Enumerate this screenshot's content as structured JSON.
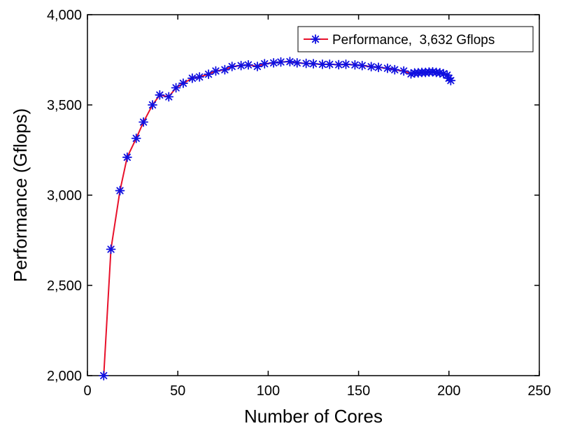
{
  "chart_data": {
    "type": "line",
    "xlabel": "Number of Cores",
    "ylabel": "Performance (Gflops)",
    "xlim": [
      0,
      250
    ],
    "ylim": [
      2000,
      4000
    ],
    "xticks": [
      0,
      50,
      100,
      150,
      200,
      250
    ],
    "xtick_labels": [
      "0",
      "50",
      "100",
      "150",
      "200",
      "250"
    ],
    "yticks": [
      2000,
      2500,
      3000,
      3500,
      4000
    ],
    "ytick_labels": [
      "2,000",
      "2,500",
      "3,000",
      "3,500",
      "4,000"
    ],
    "grid": false,
    "legend_position": "top-right",
    "line_color": "#e8102a",
    "marker_color": "#1010e0",
    "marker": "asterisk",
    "series": [
      {
        "name": "Performance,  3,632 Gflops",
        "x": [
          9,
          13,
          18,
          22,
          27,
          31,
          36,
          40,
          45,
          49,
          53,
          58,
          62,
          67,
          71,
          76,
          80,
          85,
          89,
          94,
          98,
          103,
          107,
          112,
          116,
          121,
          125,
          130,
          134,
          139,
          143,
          148,
          152,
          157,
          161,
          166,
          170,
          175,
          179,
          181,
          183,
          185,
          187,
          189,
          191,
          193,
          195,
          197,
          199,
          200,
          201
        ],
        "y": [
          2000,
          2700,
          3025,
          3210,
          3315,
          3405,
          3500,
          3555,
          3545,
          3595,
          3620,
          3648,
          3655,
          3670,
          3688,
          3695,
          3713,
          3718,
          3722,
          3713,
          3728,
          3733,
          3738,
          3740,
          3733,
          3730,
          3728,
          3725,
          3725,
          3723,
          3725,
          3722,
          3718,
          3712,
          3708,
          3703,
          3695,
          3688,
          3672,
          3677,
          3678,
          3680,
          3680,
          3682,
          3683,
          3680,
          3678,
          3673,
          3665,
          3648,
          3635
        ]
      }
    ]
  }
}
